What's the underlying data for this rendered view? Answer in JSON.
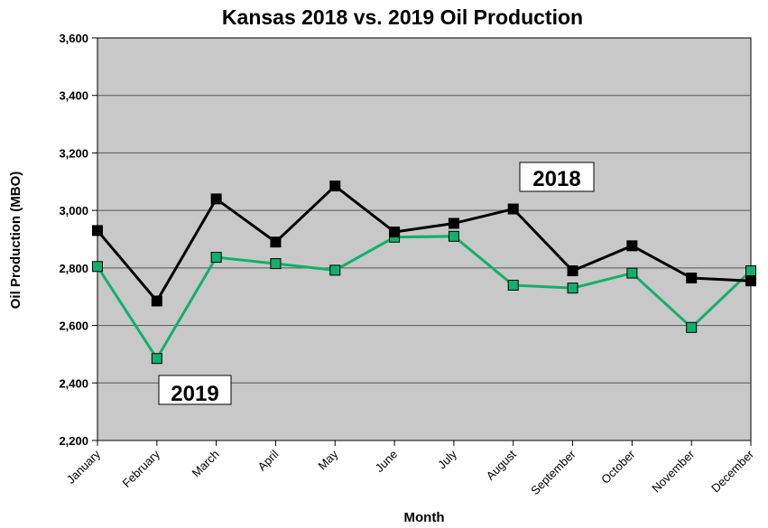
{
  "chart_data": {
    "type": "line",
    "title": "Kansas 2018 vs. 2019 Oil Production",
    "xlabel": "Month",
    "ylabel": "Oil Production (MBO)",
    "categories": [
      "January",
      "February",
      "March",
      "April",
      "May",
      "June",
      "July",
      "August",
      "September",
      "October",
      "November",
      "December"
    ],
    "ylim": [
      2200,
      3600
    ],
    "yticks": [
      2200,
      2400,
      2600,
      2800,
      3000,
      3200,
      3400,
      3600
    ],
    "ytick_labels": [
      "2,200",
      "2,400",
      "2,600",
      "2,800",
      "3,000",
      "3,200",
      "3,400",
      "3,600"
    ],
    "grid": true,
    "legend": "none",
    "series": [
      {
        "name": "2018",
        "color": "#000000",
        "marker": "square",
        "values": [
          2930,
          2685,
          3040,
          2890,
          3085,
          2925,
          2955,
          3005,
          2790,
          2877,
          2765,
          2755
        ]
      },
      {
        "name": "2019",
        "color": "#11b06b",
        "marker": "square",
        "values": [
          2805,
          2485,
          2837,
          2815,
          2792,
          2907,
          2910,
          2740,
          2730,
          2782,
          2593,
          2790
        ]
      }
    ],
    "callouts": [
      {
        "text": "2018"
      },
      {
        "text": "2019"
      }
    ],
    "colors": {
      "plot_background": "#c8c8c8",
      "gridline": "#555555"
    }
  }
}
